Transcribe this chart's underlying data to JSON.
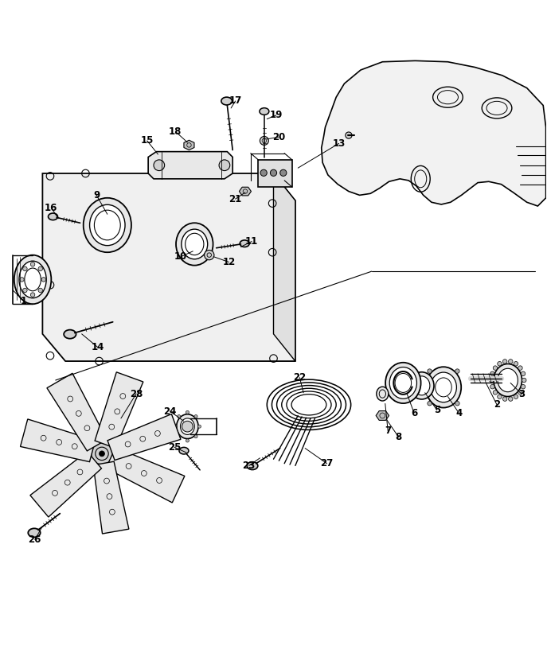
{
  "background_color": "#ffffff",
  "line_color": "#000000",
  "fig_width": 6.87,
  "fig_height": 8.26,
  "dpi": 100
}
